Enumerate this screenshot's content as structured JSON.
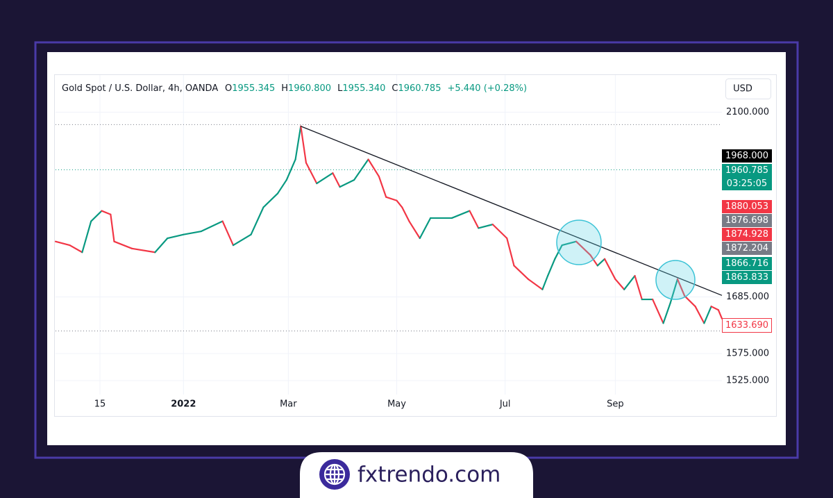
{
  "header": {
    "title": "Gold Spot / U.S. Dollar, 4h, OANDA",
    "ohlc": [
      {
        "key": "O",
        "value": "1955.345"
      },
      {
        "key": "H",
        "value": "1960.800"
      },
      {
        "key": "L",
        "value": "1955.340"
      },
      {
        "key": "C",
        "value": "1960.785"
      }
    ],
    "change": "+5.440 (+0.28%)"
  },
  "currency": "USD",
  "chart_data": {
    "type": "line",
    "x": [
      -72,
      -64,
      -57,
      -52,
      -46,
      -41,
      -39,
      -29,
      -16,
      -9,
      0,
      10,
      22,
      28,
      38,
      45,
      53,
      58,
      63,
      66,
      69,
      75,
      84,
      88,
      96,
      104,
      110,
      114,
      120,
      123,
      127,
      133,
      139,
      151,
      161,
      166,
      174,
      182,
      186,
      194,
      202,
      205,
      209,
      213,
      221,
      229,
      233,
      237,
      243,
      248,
      254,
      258,
      264,
      270,
      274,
      278,
      282,
      288,
      293,
      297,
      301,
      303
    ],
    "values": [
      1800,
      1792,
      1777,
      1844,
      1867,
      1859,
      1800,
      1785,
      1777,
      1807,
      1815,
      1822,
      1844,
      1792,
      1815,
      1875,
      1906,
      1937,
      1985,
      2065,
      1977,
      1929,
      1953,
      1921,
      1937,
      1985,
      1945,
      1898,
      1890,
      1875,
      1844,
      1807,
      1851,
      1851,
      1867,
      1829,
      1837,
      1807,
      1749,
      1721,
      1700,
      1728,
      1763,
      1792,
      1800,
      1771,
      1749,
      1763,
      1721,
      1700,
      1728,
      1680,
      1680,
      1633,
      1673,
      1721,
      1687,
      1666,
      1633,
      1666,
      1659,
      1642
    ],
    "up_color": "#089981",
    "down_color": "#f23645",
    "xlim": [
      -72,
      303
    ],
    "xticks": [
      {
        "value": -47,
        "label": "15"
      },
      {
        "value": 0,
        "label": "2022"
      },
      {
        "value": 59,
        "label": "Mar"
      },
      {
        "value": 120,
        "label": "May"
      },
      {
        "value": 181,
        "label": "Jul"
      },
      {
        "value": 243,
        "label": "Sep"
      }
    ],
    "ylim": [
      1500,
      2195
    ],
    "log_scale": true,
    "yticks": [
      {
        "value": 2100,
        "label": "2100.000"
      },
      {
        "value": 1685,
        "label": "1685.000"
      },
      {
        "value": 1575,
        "label": "1575.000"
      },
      {
        "value": 1525,
        "label": "1525.000"
      }
    ],
    "grid": true,
    "trendline": {
      "x": [
        66,
        303
      ],
      "y": [
        2065,
        1688
      ],
      "color": "#131722"
    },
    "hlines": [
      {
        "value": 2069,
        "color": "#787b86"
      },
      {
        "value": 1960.785,
        "color": "#089981"
      },
      {
        "value": 1618,
        "color": "#787b86"
      }
    ]
  },
  "price_badges": [
    {
      "text": "1968.000",
      "color": "#000000"
    },
    {
      "text": "1960.785",
      "sub": "03:25:05",
      "color": "#089981"
    },
    {
      "text": "1880.053",
      "color": "#f23645"
    },
    {
      "text": "1876.698",
      "color": "#787b86"
    },
    {
      "text": "1874.928",
      "color": "#f23645"
    },
    {
      "text": "1872.204",
      "color": "#787b86"
    },
    {
      "text": "1866.716",
      "color": "#089981"
    },
    {
      "text": "1863.833",
      "color": "#089981"
    },
    {
      "text": "1633.690",
      "color": "#f23645",
      "outline": true
    }
  ],
  "brand": "fxtrendo.com"
}
